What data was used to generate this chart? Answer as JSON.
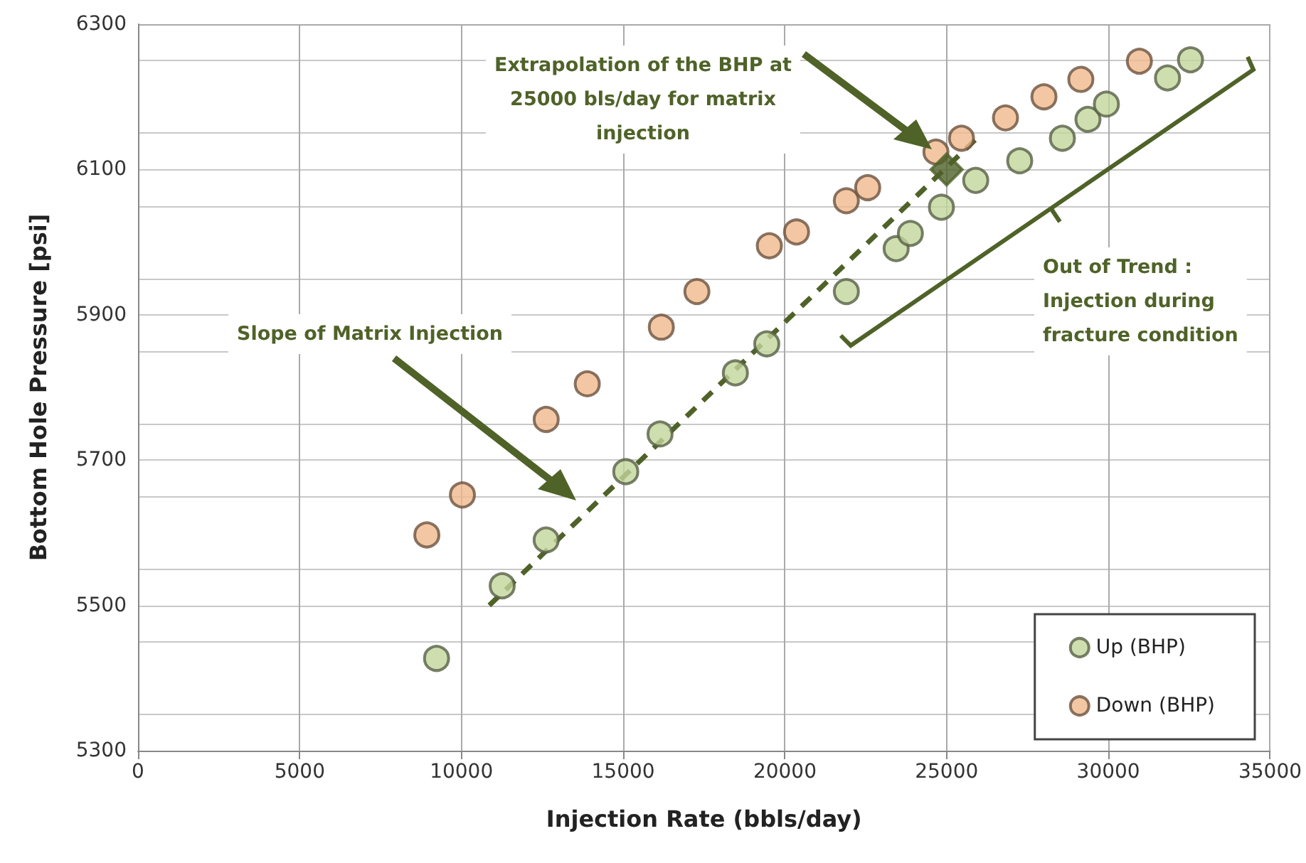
{
  "chart_data": {
    "type": "scatter",
    "xlabel": "Injection Rate (bbls/day)",
    "ylabel": "Bottom Hole Pressure [psi]",
    "annotations": [
      "Extrapolation of the BHP at\n25000 bls/day for matrix\ninjection",
      "Slope of Matrix Injection",
      "Out of Trend :\nInjection during\nfracture condition"
    ],
    "series": [
      {
        "name": "Up (BHP)",
        "color": "#c3d69b",
        "x": [
          9230,
          11260,
          12620,
          15080,
          16140,
          18470,
          19440,
          21900,
          23440,
          23880,
          24840,
          25900,
          27260,
          28580,
          29370,
          29940,
          31830,
          32540
        ],
        "values": [
          5427,
          5527,
          5590,
          5684,
          5736,
          5820,
          5860,
          5932,
          5991,
          6012,
          6048,
          6085,
          6112,
          6143,
          6169,
          6190,
          6226,
          6251
        ]
      },
      {
        "name": "Down (BHP)",
        "color": "#f0b98c",
        "x": [
          8930,
          10030,
          12620,
          13890,
          16180,
          17280,
          19520,
          20360,
          21900,
          22560,
          24670,
          25460,
          26820,
          28010,
          29150,
          30960
        ],
        "values": [
          5597,
          5652,
          5756,
          5805,
          5883,
          5932,
          5995,
          6014,
          6057,
          6075,
          6124,
          6143,
          6171,
          6200,
          6224,
          6249
        ]
      },
      {
        "type": "line",
        "color": "#4f6228",
        "line_style": "dashed",
        "marker": "none",
        "x": [
          10860,
          26030
        ],
        "values": [
          5500,
          6147
        ]
      },
      {
        "color": "#4f6228",
        "marker": "diamond",
        "x": [
          25000
        ],
        "values": [
          6100
        ]
      }
    ],
    "marker": "circle",
    "xlim": [
      0,
      35000
    ],
    "xticks": [
      0,
      5000,
      10000,
      15000,
      20000,
      25000,
      30000,
      35000
    ],
    "ylim": [
      5300,
      6300
    ],
    "yticks": [
      5300,
      5500,
      5700,
      5900,
      6100,
      6300
    ],
    "grid": true,
    "legend": "bottom right"
  }
}
